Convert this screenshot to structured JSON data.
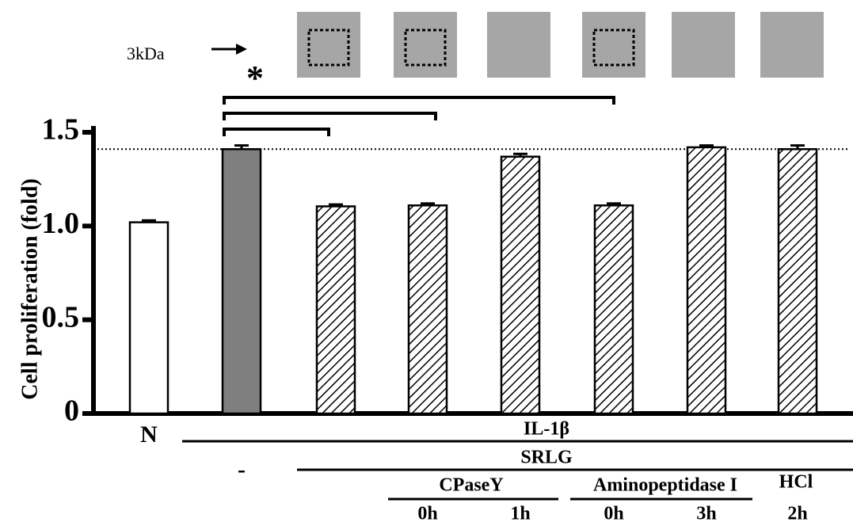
{
  "chart_data": {
    "type": "bar",
    "y_label": "Cell proliferation (fold)",
    "categories": [
      "N",
      "-",
      null,
      "0h",
      "1h",
      "0h",
      "3h",
      "2h"
    ],
    "values": [
      1.02,
      1.41,
      1.105,
      1.11,
      1.37,
      1.11,
      1.42,
      1.41
    ],
    "errors": [
      0.01,
      0.02,
      0.01,
      0.01,
      0.015,
      0.01,
      0.01,
      0.02
    ],
    "fills": [
      "white",
      "gray",
      "hatched",
      "hatched",
      "hatched",
      "hatched",
      "hatched",
      "hatched"
    ],
    "ylim": [
      0,
      1.5
    ],
    "yticks": [
      0,
      0.5,
      {
        "value": 1,
        "label": "1.0"
      },
      1.5
    ],
    "reference_line": 1.41,
    "groups": [
      "IL-1β",
      "SRLG",
      "CPaseY",
      "Aminopeptidase I",
      "HCl"
    ],
    "significance": "*",
    "blot_label": "3kDa"
  }
}
